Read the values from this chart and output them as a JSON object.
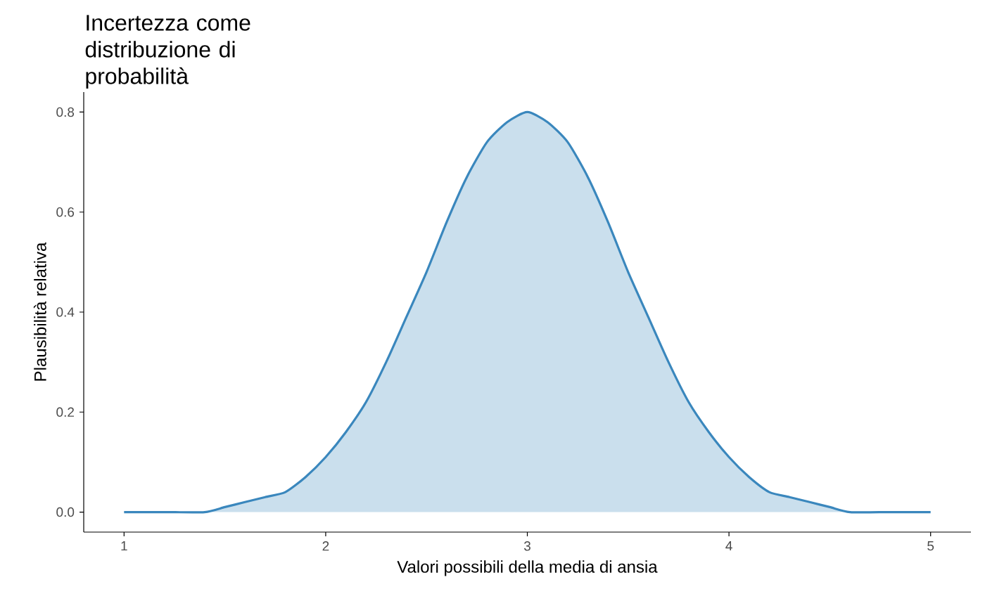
{
  "chart_data": {
    "type": "area",
    "title": "Incertezza come distribuzione di probabilità",
    "xlabel": "Valori possibili della media di ansia",
    "ylabel": "Plausibilità relativa",
    "x": [
      1.0,
      1.2,
      1.4,
      1.5,
      1.6,
      1.7,
      1.8,
      1.9,
      2.0,
      2.1,
      2.2,
      2.3,
      2.4,
      2.5,
      2.6,
      2.7,
      2.8,
      2.9,
      3.0,
      3.1,
      3.2,
      3.3,
      3.4,
      3.5,
      3.6,
      3.7,
      3.8,
      3.9,
      4.0,
      4.1,
      4.2,
      4.3,
      4.4,
      4.5,
      4.6,
      4.8,
      5.0
    ],
    "series": [
      {
        "color": "#3a87bd",
        "values": [
          0.0,
          0.0,
          0.0,
          0.01,
          0.02,
          0.03,
          0.04,
          0.07,
          0.11,
          0.16,
          0.22,
          0.3,
          0.39,
          0.48,
          0.58,
          0.67,
          0.74,
          0.78,
          0.8,
          0.78,
          0.74,
          0.67,
          0.58,
          0.48,
          0.39,
          0.3,
          0.22,
          0.16,
          0.11,
          0.07,
          0.04,
          0.03,
          0.02,
          0.01,
          0.0,
          0.0,
          0.0
        ]
      }
    ],
    "xlim": [
      0.8,
      5.2
    ],
    "ylim": [
      -0.04,
      0.84
    ],
    "xticks": [
      1,
      2,
      3,
      4,
      5
    ],
    "yticks": [
      {
        "value": 0,
        "label": "0.0"
      },
      0.2,
      0.4,
      0.6,
      0.8
    ],
    "grid": false
  }
}
